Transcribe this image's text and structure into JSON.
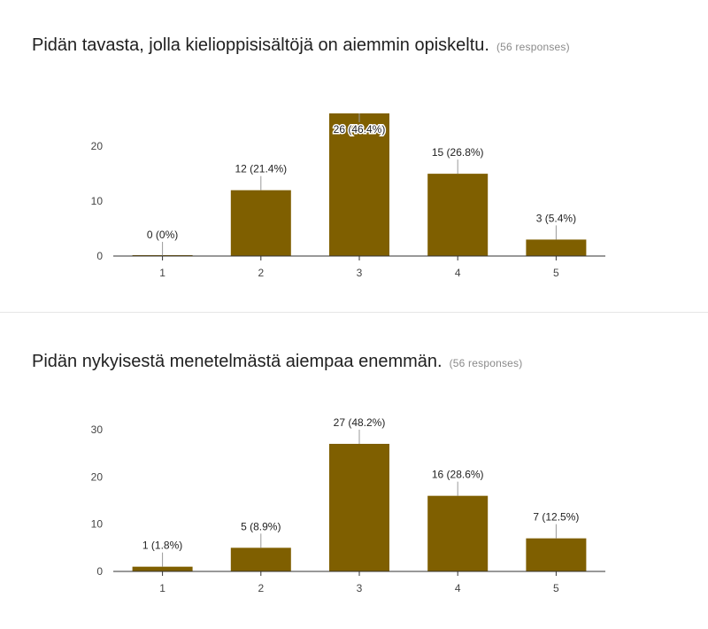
{
  "questions": [
    {
      "title": "Pidän tavasta, jolla kielioppisisältöjä on aiemmin opiskeltu.",
      "responses": "(56 responses)"
    },
    {
      "title": "Pidän nykyisestä menetelmästä aiempaa enemmän.",
      "responses": "(56 responses)"
    }
  ],
  "colors": {
    "bar": "#7f5f00",
    "axis": "#333333",
    "tick_text": "#444444",
    "label_text": "#222222",
    "leader": "#999999"
  },
  "chart_data": [
    {
      "type": "bar",
      "title": "Pidän tavasta, jolla kielioppisisältöjä on aiemmin opiskeltu.",
      "categories": [
        "1",
        "2",
        "3",
        "4",
        "5"
      ],
      "values": [
        0,
        12,
        26,
        15,
        3
      ],
      "data_labels": [
        "0 (0%)",
        "12 (21.4%)",
        "26 (46.4%)",
        "15 (26.8%)",
        "3 (5.4%)"
      ],
      "yticks": [
        0,
        10,
        20
      ],
      "ylim": [
        0,
        26
      ],
      "xlabel": "",
      "ylabel": "",
      "grid": false,
      "legend": "none"
    },
    {
      "type": "bar",
      "title": "Pidän nykyisestä menetelmästä aiempaa enemmän.",
      "categories": [
        "1",
        "2",
        "3",
        "4",
        "5"
      ],
      "values": [
        1,
        5,
        27,
        16,
        7
      ],
      "data_labels": [
        "1 (1.8%)",
        "5 (8.9%)",
        "27 (48.2%)",
        "16 (28.6%)",
        "7 (12.5%)"
      ],
      "yticks": [
        0,
        10,
        20,
        30
      ],
      "ylim": [
        0,
        30
      ],
      "xlabel": "",
      "ylabel": "",
      "grid": false,
      "legend": "none"
    }
  ]
}
